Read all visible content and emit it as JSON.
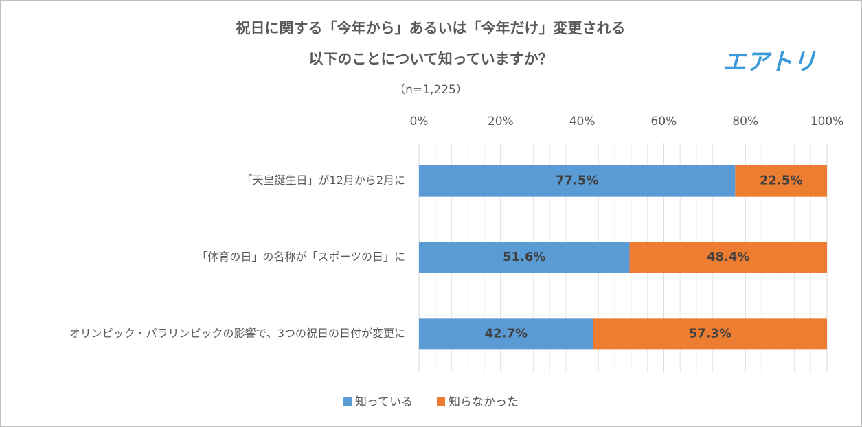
{
  "chart_data": {
    "type": "stacked-bar-horizontal",
    "title": [
      "祝日に関する「今年から」あるいは「今年だけ」変更される",
      "以下のことについて知っていますか？"
    ],
    "subtitle": "（n=1,225）",
    "logo": "エアトリ",
    "categories": [
      "「天皇誕生日」が12月から2月に",
      "「体育の日」の名称が「スポーツの日」に",
      "オリンピック・パラリンピックの影響で、3つの祝日の日付が変更に"
    ],
    "series": [
      {
        "name": "知っている",
        "color": "#5b9bd5",
        "values": [
          77.5,
          51.6,
          42.7
        ],
        "value_labels": [
          "77.5%",
          "51.6%",
          "42.7%"
        ]
      },
      {
        "name": "知らなかった",
        "color": "#ed7d31",
        "values": [
          22.5,
          48.4,
          57.3
        ],
        "value_labels": [
          "22.5%",
          "48.4%",
          "57.3%"
        ]
      }
    ],
    "xlim": [
      0,
      100
    ],
    "xticks": [
      {
        "value": 0,
        "label": "0%"
      },
      {
        "value": 20,
        "label": "20%"
      },
      {
        "value": 40,
        "label": "40%"
      },
      {
        "value": 60,
        "label": "60%"
      },
      {
        "value": 80,
        "label": "80%"
      },
      {
        "value": 100,
        "label": "100%"
      }
    ],
    "minor_xticks": [
      4,
      8,
      12,
      16,
      24,
      28,
      32,
      36,
      44,
      48,
      52,
      56,
      64,
      68,
      72,
      76,
      84,
      88,
      92,
      96
    ],
    "grid": true,
    "legend": "bottom"
  }
}
